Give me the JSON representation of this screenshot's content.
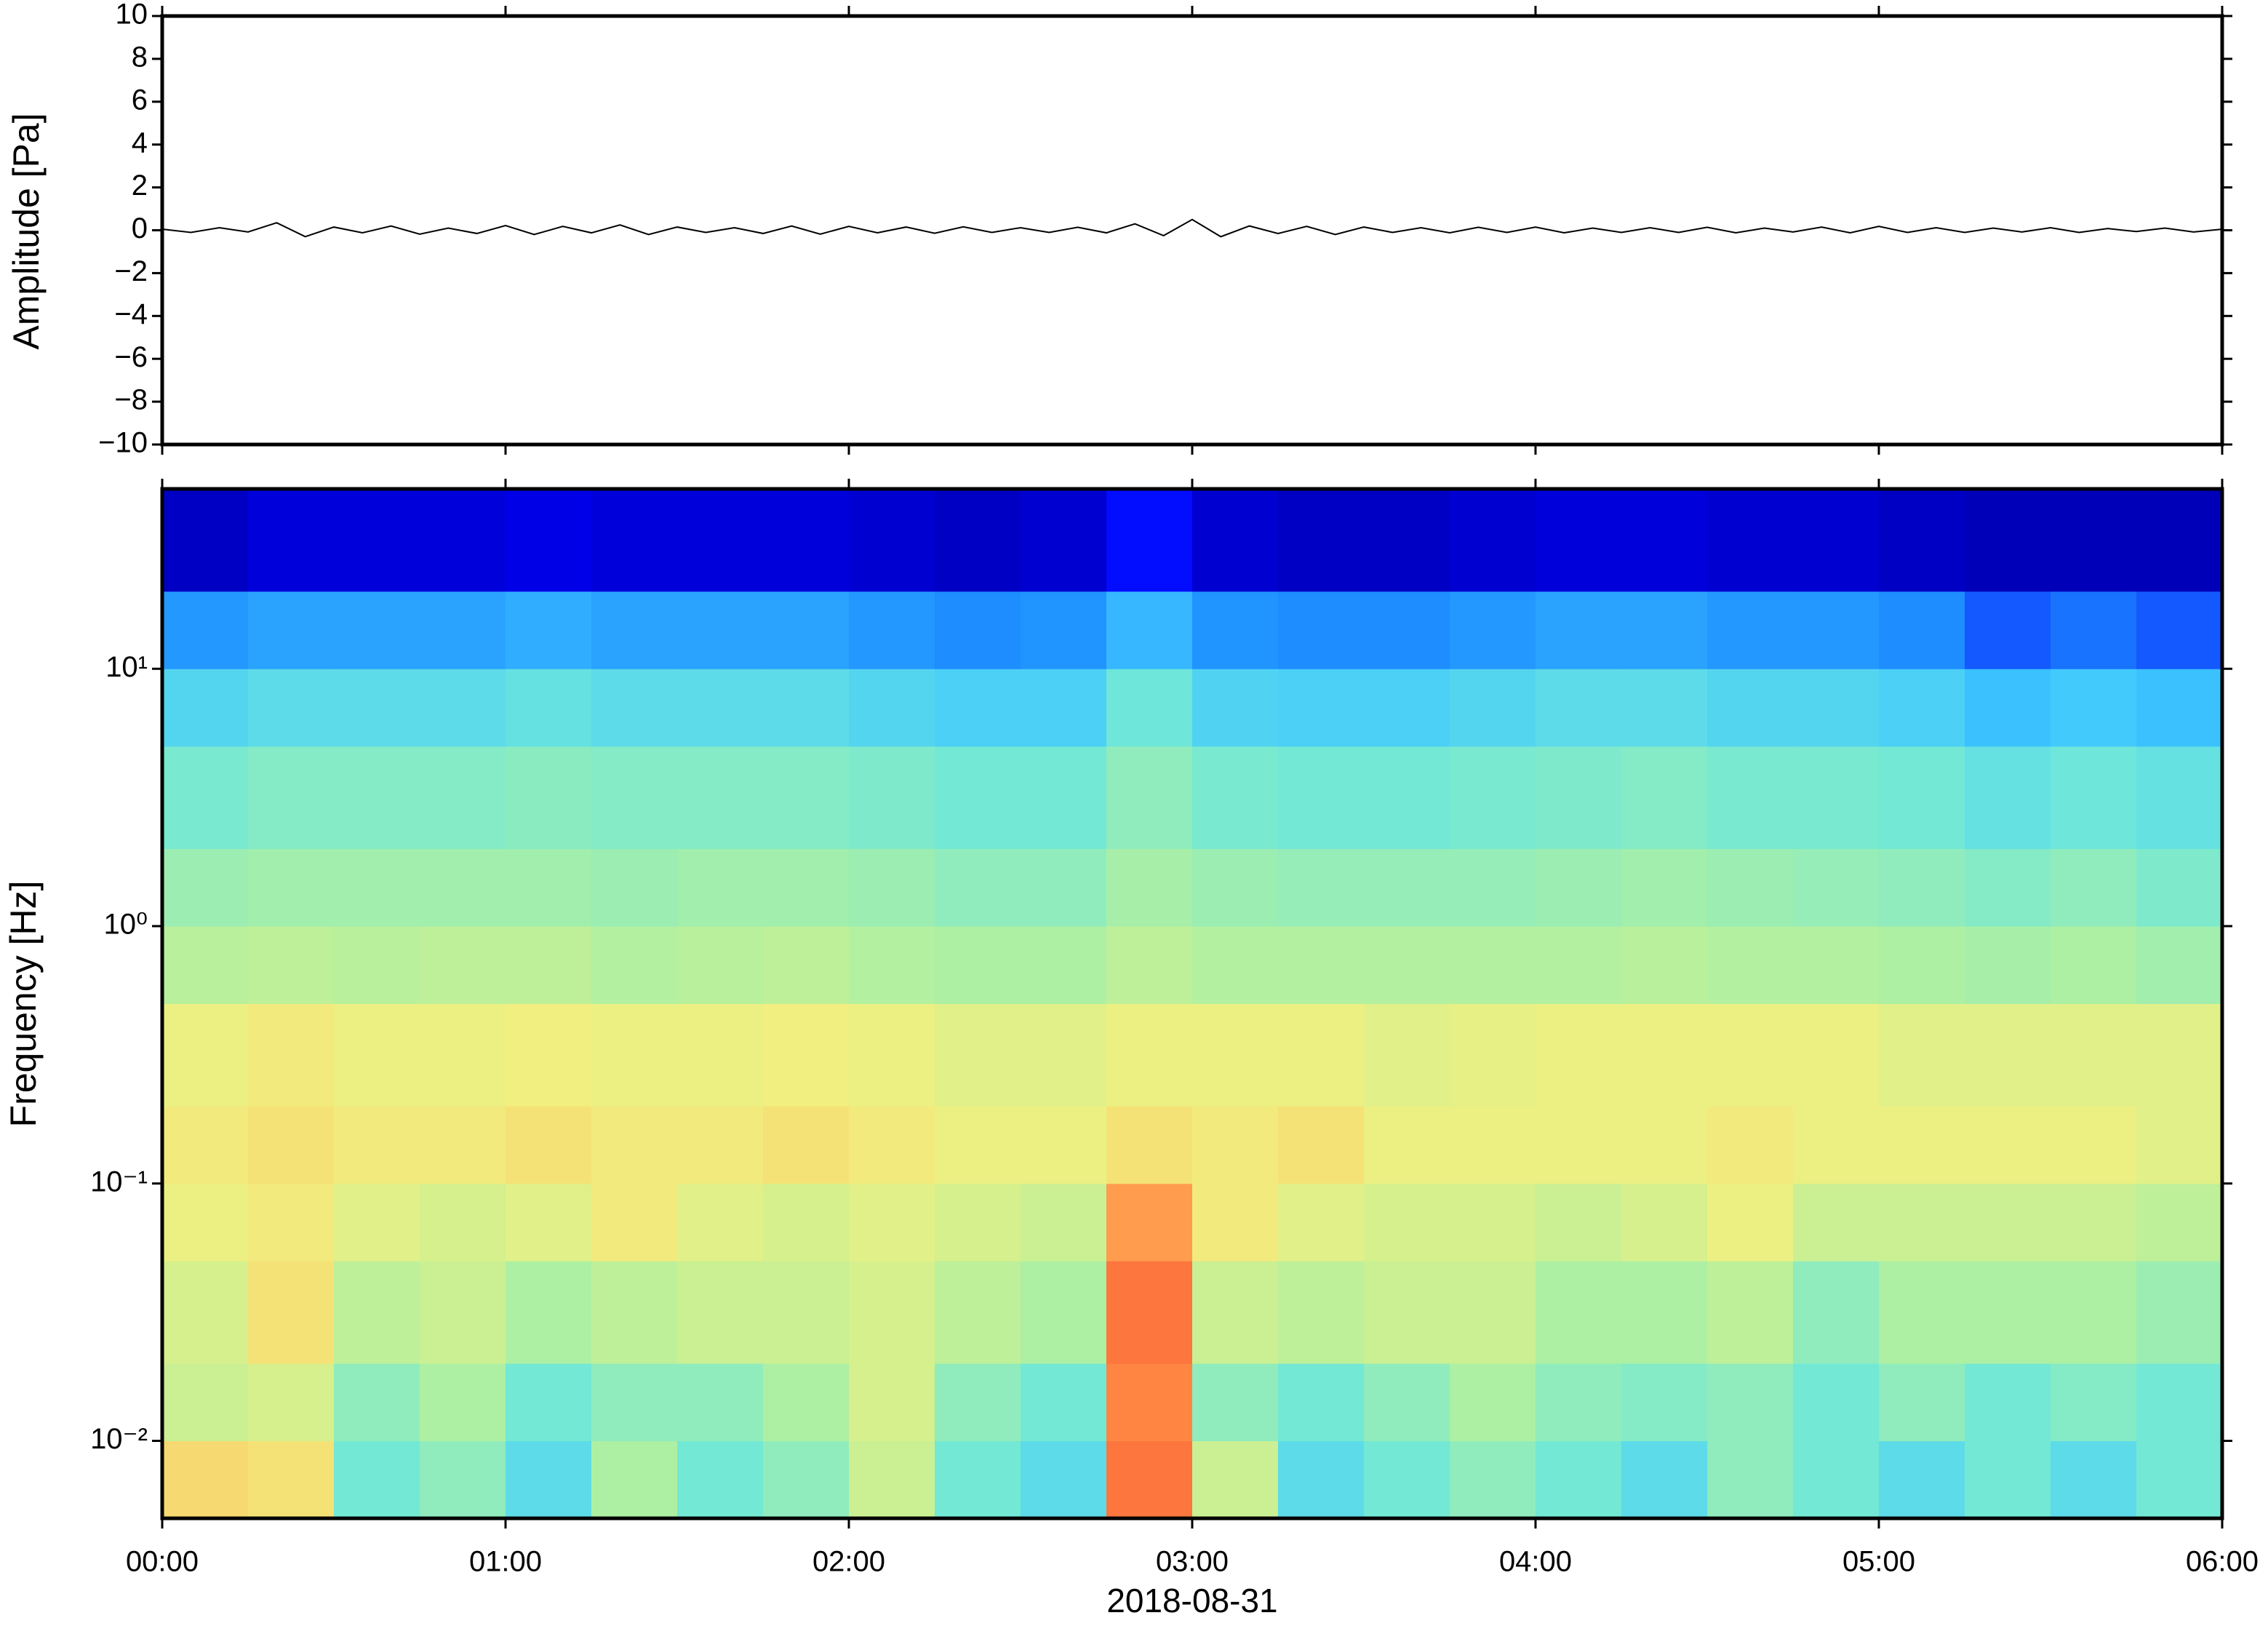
{
  "chart_data": [
    {
      "type": "line",
      "ylabel": "Amplitude [Pa]",
      "color": "#000000",
      "x": [
        "00:00",
        "00:05",
        "00:10",
        "00:15",
        "00:20",
        "00:25",
        "00:30",
        "00:35",
        "00:40",
        "00:45",
        "00:50",
        "00:55",
        "01:00",
        "01:05",
        "01:10",
        "01:15",
        "01:20",
        "01:25",
        "01:30",
        "01:35",
        "01:40",
        "01:45",
        "01:50",
        "01:55",
        "02:00",
        "02:05",
        "02:10",
        "02:15",
        "02:20",
        "02:25",
        "02:30",
        "02:35",
        "02:40",
        "02:45",
        "02:50",
        "02:55",
        "03:00",
        "03:05",
        "03:10",
        "03:15",
        "03:20",
        "03:25",
        "03:30",
        "03:35",
        "03:40",
        "03:45",
        "03:50",
        "03:55",
        "04:00",
        "04:05",
        "04:10",
        "04:15",
        "04:20",
        "04:25",
        "04:30",
        "04:35",
        "04:40",
        "04:45",
        "04:50",
        "04:55",
        "05:00",
        "05:05",
        "05:10",
        "05:15",
        "05:20",
        "05:25",
        "05:30",
        "05:35",
        "05:40",
        "05:45",
        "05:50",
        "05:55",
        "06:00"
      ],
      "values": [
        0.05,
        -0.1,
        0.12,
        -0.08,
        0.35,
        -0.3,
        0.15,
        -0.12,
        0.2,
        -0.18,
        0.1,
        -0.15,
        0.22,
        -0.2,
        0.18,
        -0.12,
        0.25,
        -0.2,
        0.15,
        -0.1,
        0.12,
        -0.15,
        0.2,
        -0.18,
        0.18,
        -0.12,
        0.15,
        -0.14,
        0.16,
        -0.1,
        0.12,
        -0.1,
        0.14,
        -0.12,
        0.3,
        -0.25,
        0.5,
        -0.3,
        0.2,
        -0.15,
        0.18,
        -0.2,
        0.15,
        -0.1,
        0.12,
        -0.12,
        0.14,
        -0.1,
        0.15,
        -0.12,
        0.1,
        -0.1,
        0.12,
        -0.1,
        0.14,
        -0.12,
        0.1,
        -0.08,
        0.15,
        -0.12,
        0.18,
        -0.1,
        0.12,
        -0.1,
        0.1,
        -0.08,
        0.12,
        -0.1,
        0.08,
        -0.06,
        0.1,
        -0.08,
        0.05
      ],
      "xlim": [
        "00:00",
        "06:00"
      ],
      "xticks": [
        "00:00",
        "01:00",
        "02:00",
        "03:00",
        "04:00",
        "05:00",
        "06:00"
      ],
      "ylim": [
        -10,
        10
      ],
      "yticks": [
        {
          "value": -10,
          "label": "−10"
        },
        {
          "value": -8,
          "label": "−8"
        },
        {
          "value": -6,
          "label": "−6"
        },
        {
          "value": -4,
          "label": "−4"
        },
        {
          "value": -2,
          "label": "−2"
        },
        0,
        2,
        4,
        6,
        8,
        10
      ]
    },
    {
      "type": "heatmap",
      "ylabel": "Frequency [Hz]",
      "xlabel": "2018-08-31",
      "log_y": true,
      "xlim": [
        "00:00",
        "06:00"
      ],
      "xticks": [
        "00:00",
        "01:00",
        "02:00",
        "03:00",
        "04:00",
        "05:00",
        "06:00"
      ],
      "ylim": [
        0.005,
        50
      ],
      "yticks": [
        {
          "value": 0.01,
          "label": "10⁻²"
        },
        {
          "value": 0.1,
          "label": "10⁻¹"
        },
        {
          "value": 1,
          "label": "10⁰"
        },
        {
          "value": 10,
          "label": "10¹"
        }
      ],
      "x": [
        "00:00",
        "00:15",
        "00:30",
        "00:45",
        "01:00",
        "01:15",
        "01:30",
        "01:45",
        "02:00",
        "02:15",
        "02:30",
        "02:45",
        "03:00",
        "03:15",
        "03:30",
        "03:45",
        "04:00",
        "04:15",
        "04:30",
        "04:45",
        "05:00",
        "05:15",
        "05:30",
        "05:45"
      ],
      "y_bins": [
        0.005,
        0.01,
        0.02,
        0.05,
        0.1,
        0.2,
        0.5,
        1,
        2,
        5,
        10,
        20,
        50
      ],
      "zlim": [
        0,
        1
      ],
      "colormap": [
        "#00007f",
        "#0000ff",
        "#1e90ff",
        "#40c8ff",
        "#70e8d8",
        "#b0f0a0",
        "#f0f080",
        "#ffc060",
        "#ff8040",
        "#e02020"
      ],
      "values": [
        [
          0.72,
          0.7,
          0.45,
          0.5,
          0.4,
          0.55,
          0.45,
          0.5,
          0.6,
          0.45,
          0.4,
          0.9,
          0.6,
          0.4,
          0.45,
          0.5,
          0.45,
          0.4,
          0.5,
          0.45,
          0.4,
          0.45,
          0.4,
          0.45
        ],
        [
          0.6,
          0.62,
          0.5,
          0.55,
          0.45,
          0.5,
          0.5,
          0.55,
          0.62,
          0.5,
          0.45,
          0.88,
          0.5,
          0.45,
          0.5,
          0.55,
          0.5,
          0.48,
          0.5,
          0.45,
          0.5,
          0.45,
          0.48,
          0.45
        ],
        [
          0.62,
          0.7,
          0.58,
          0.6,
          0.55,
          0.58,
          0.6,
          0.6,
          0.62,
          0.58,
          0.55,
          0.9,
          0.6,
          0.58,
          0.6,
          0.6,
          0.55,
          0.55,
          0.58,
          0.5,
          0.55,
          0.55,
          0.55,
          0.52
        ],
        [
          0.66,
          0.68,
          0.64,
          0.62,
          0.64,
          0.68,
          0.64,
          0.62,
          0.64,
          0.62,
          0.6,
          0.84,
          0.68,
          0.64,
          0.62,
          0.62,
          0.6,
          0.62,
          0.66,
          0.6,
          0.6,
          0.6,
          0.6,
          0.58
        ],
        [
          0.68,
          0.7,
          0.68,
          0.68,
          0.7,
          0.68,
          0.68,
          0.7,
          0.68,
          0.66,
          0.66,
          0.7,
          0.68,
          0.7,
          0.66,
          0.66,
          0.66,
          0.66,
          0.68,
          0.66,
          0.66,
          0.66,
          0.66,
          0.64
        ],
        [
          0.66,
          0.68,
          0.66,
          0.66,
          0.67,
          0.66,
          0.66,
          0.67,
          0.66,
          0.64,
          0.64,
          0.66,
          0.66,
          0.66,
          0.64,
          0.65,
          0.66,
          0.66,
          0.66,
          0.66,
          0.64,
          0.64,
          0.64,
          0.64
        ],
        [
          0.57,
          0.58,
          0.57,
          0.58,
          0.58,
          0.56,
          0.57,
          0.58,
          0.56,
          0.55,
          0.55,
          0.58,
          0.56,
          0.56,
          0.56,
          0.56,
          0.56,
          0.57,
          0.56,
          0.56,
          0.55,
          0.54,
          0.55,
          0.53
        ],
        [
          0.52,
          0.53,
          0.53,
          0.53,
          0.53,
          0.52,
          0.53,
          0.53,
          0.52,
          0.5,
          0.5,
          0.54,
          0.52,
          0.51,
          0.51,
          0.51,
          0.52,
          0.53,
          0.52,
          0.51,
          0.5,
          0.48,
          0.5,
          0.47
        ],
        [
          0.46,
          0.48,
          0.48,
          0.48,
          0.49,
          0.48,
          0.48,
          0.48,
          0.47,
          0.45,
          0.45,
          0.5,
          0.46,
          0.45,
          0.45,
          0.46,
          0.47,
          0.48,
          0.46,
          0.46,
          0.45,
          0.42,
          0.44,
          0.42
        ],
        [
          0.38,
          0.4,
          0.4,
          0.4,
          0.42,
          0.4,
          0.4,
          0.4,
          0.38,
          0.36,
          0.36,
          0.44,
          0.37,
          0.36,
          0.36,
          0.38,
          0.4,
          0.4,
          0.38,
          0.38,
          0.36,
          0.32,
          0.34,
          0.32
        ],
        [
          0.24,
          0.26,
          0.26,
          0.26,
          0.28,
          0.26,
          0.26,
          0.26,
          0.24,
          0.22,
          0.23,
          0.3,
          0.23,
          0.22,
          0.22,
          0.24,
          0.26,
          0.26,
          0.24,
          0.24,
          0.22,
          0.18,
          0.2,
          0.18
        ],
        [
          0.06,
          0.08,
          0.08,
          0.08,
          0.09,
          0.08,
          0.08,
          0.08,
          0.07,
          0.06,
          0.07,
          0.12,
          0.07,
          0.06,
          0.06,
          0.07,
          0.08,
          0.08,
          0.07,
          0.07,
          0.06,
          0.05,
          0.05,
          0.05
        ]
      ]
    }
  ]
}
